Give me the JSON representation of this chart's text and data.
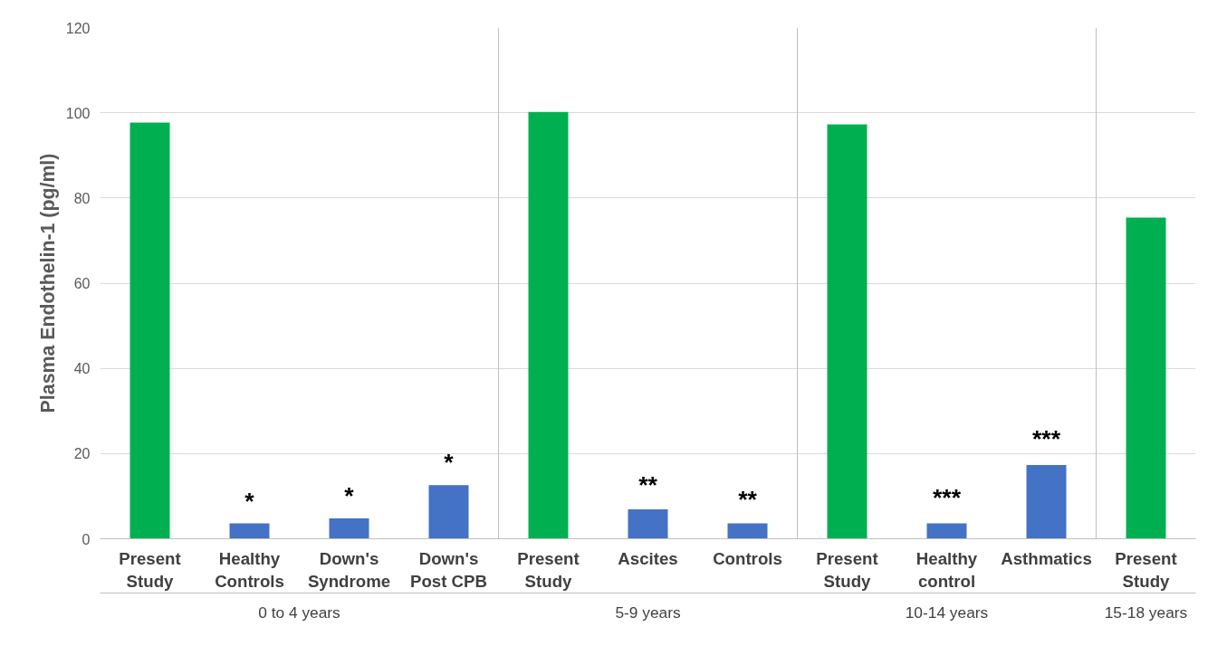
{
  "chart_data": {
    "type": "bar",
    "ylabel": "Plasma Endothelin-1 (pg/ml)",
    "categories": [
      "Present Study",
      "Healthy Controls",
      "Down's Syndrome",
      "Down's Post CPB",
      "Present Study",
      "Ascites",
      "Controls",
      "Present Study",
      "Healthy control",
      "Asthmatics",
      "Present Study"
    ],
    "values": [
      97.7,
      3.6,
      4.8,
      12.6,
      100.2,
      6.9,
      3.6,
      97.3,
      3.6,
      17.3,
      75.4
    ],
    "colors": [
      "#00b050",
      "#4472c4",
      "#4472c4",
      "#4472c4",
      "#00b050",
      "#4472c4",
      "#4472c4",
      "#00b050",
      "#4472c4",
      "#4472c4",
      "#00b050"
    ],
    "ylim": [
      0,
      120
    ],
    "yticks": [
      0,
      20,
      40,
      60,
      80,
      100,
      120
    ],
    "grid": "y",
    "annotations": [
      "0 to 4 years",
      "5-9 years",
      "10-14 years",
      "15-18 years",
      "*",
      "*",
      "*",
      "**",
      "**",
      "***",
      "***"
    ]
  }
}
